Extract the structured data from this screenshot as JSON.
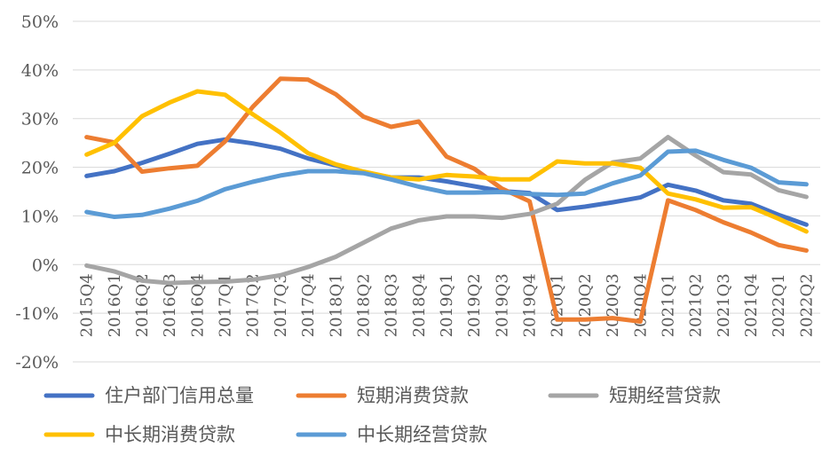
{
  "chart_data": {
    "type": "line",
    "categories": [
      "2015Q4",
      "2016Q1",
      "2016Q2",
      "2016Q3",
      "2016Q4",
      "2017Q1",
      "2017Q2",
      "2017Q3",
      "2017Q4",
      "2018Q1",
      "2018Q2",
      "2018Q3",
      "2018Q4",
      "2019Q1",
      "2019Q2",
      "2019Q3",
      "2019Q4",
      "2020Q1",
      "2020Q2",
      "2020Q3",
      "2020Q4",
      "2021Q1",
      "2021Q2",
      "2021Q3",
      "2021Q4",
      "2022Q1",
      "2022Q2"
    ],
    "ylim": [
      -20,
      50
    ],
    "yticks": [
      "50%",
      "40%",
      "30%",
      "20%",
      "10%",
      "0%",
      "-10%",
      "-20%"
    ],
    "ytick_values": [
      50,
      40,
      30,
      20,
      10,
      0,
      -10,
      -20
    ],
    "grid": true,
    "legend_position": "bottom",
    "series": [
      {
        "name": "住户部门信用总量",
        "color": "#4472C4",
        "values": [
          18.2,
          19.2,
          20.9,
          22.8,
          24.8,
          25.7,
          24.9,
          23.8,
          21.8,
          20.4,
          18.9,
          17.9,
          17.9,
          17.1,
          16.1,
          15.1,
          14.7,
          11.2,
          11.9,
          12.8,
          13.8,
          16.4,
          15.2,
          13.2,
          12.5,
          10.2,
          8.2
        ]
      },
      {
        "name": "短期消费贷款",
        "color": "#ED7D31",
        "values": [
          26.2,
          25.1,
          19.1,
          19.8,
          20.3,
          25.3,
          32.4,
          38.2,
          38.0,
          35.0,
          30.4,
          28.3,
          29.4,
          22.2,
          19.7,
          15.6,
          13.0,
          -11.3,
          -11.3,
          -11.0,
          -11.7,
          13.2,
          11.2,
          8.7,
          6.6,
          4.0,
          2.9
        ]
      },
      {
        "name": "短期经营贷款",
        "color": "#A5A5A5",
        "values": [
          -0.2,
          -1.4,
          -3.3,
          -3.8,
          -3.6,
          -3.5,
          -3.1,
          -2.2,
          -0.5,
          1.6,
          4.5,
          7.4,
          9.1,
          9.9,
          9.9,
          9.6,
          10.4,
          12.5,
          17.4,
          21.0,
          21.8,
          26.2,
          22.4,
          19.0,
          18.5,
          15.3,
          13.9
        ]
      },
      {
        "name": "中长期消费贷款",
        "color": "#FFC000",
        "values": [
          22.6,
          25.0,
          30.5,
          33.3,
          35.6,
          34.9,
          30.9,
          27.1,
          22.9,
          20.6,
          19.1,
          17.9,
          17.5,
          18.4,
          18.1,
          17.5,
          17.5,
          21.2,
          20.8,
          20.8,
          19.9,
          14.6,
          13.4,
          11.7,
          11.8,
          9.4,
          6.8
        ]
      },
      {
        "name": "中长期经营贷款",
        "color": "#5B9BD5",
        "values": [
          10.8,
          9.8,
          10.2,
          11.5,
          13.1,
          15.5,
          17.0,
          18.3,
          19.2,
          19.2,
          18.8,
          17.5,
          16.0,
          14.8,
          14.8,
          14.9,
          14.5,
          14.3,
          14.6,
          16.7,
          18.3,
          23.2,
          23.4,
          21.5,
          19.9,
          16.9,
          16.5
        ]
      }
    ]
  }
}
